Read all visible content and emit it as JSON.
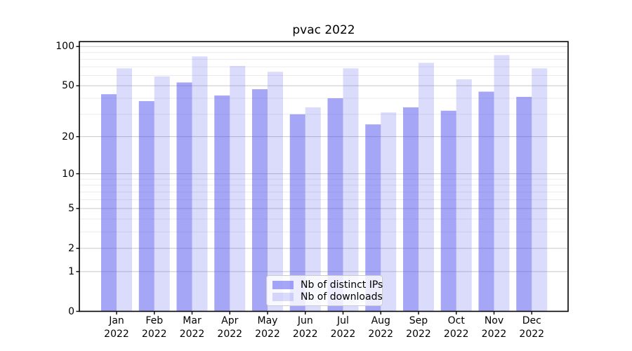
{
  "chart_data": {
    "type": "bar",
    "title": "pvac 2022",
    "x_tick_months": [
      "Jan",
      "Feb",
      "Mar",
      "Apr",
      "May",
      "Jun",
      "Jul",
      "Aug",
      "Sep",
      "Oct",
      "Nov",
      "Dec"
    ],
    "x_tick_year": "2022",
    "series": [
      {
        "key": "distinct-ips",
        "name": "Nb of distinct IPs",
        "color": "rgba(85,85,240,0.52)",
        "values": [
          43,
          38,
          53,
          42,
          47,
          30,
          40,
          25,
          34,
          32,
          45,
          41
        ]
      },
      {
        "key": "downloads",
        "name": "Nb of downloads",
        "color": "rgba(85,85,240,0.21)",
        "values": [
          68,
          59,
          84,
          71,
          64,
          34,
          68,
          31,
          75,
          56,
          86,
          68
        ]
      }
    ],
    "yscale": "log1p",
    "ylim": [
      0,
      109
    ],
    "yticks": [
      0,
      1,
      2,
      5,
      10,
      20,
      50,
      100
    ],
    "minor_gridlines": [
      3,
      4,
      6,
      7,
      8,
      9,
      30,
      40,
      60,
      70,
      80,
      90
    ],
    "grid": true,
    "legend_position": "lower center",
    "major_grid_color": "#c8c8c8",
    "minor_grid_color": "#ebebeb",
    "axis_color": "#000000"
  }
}
